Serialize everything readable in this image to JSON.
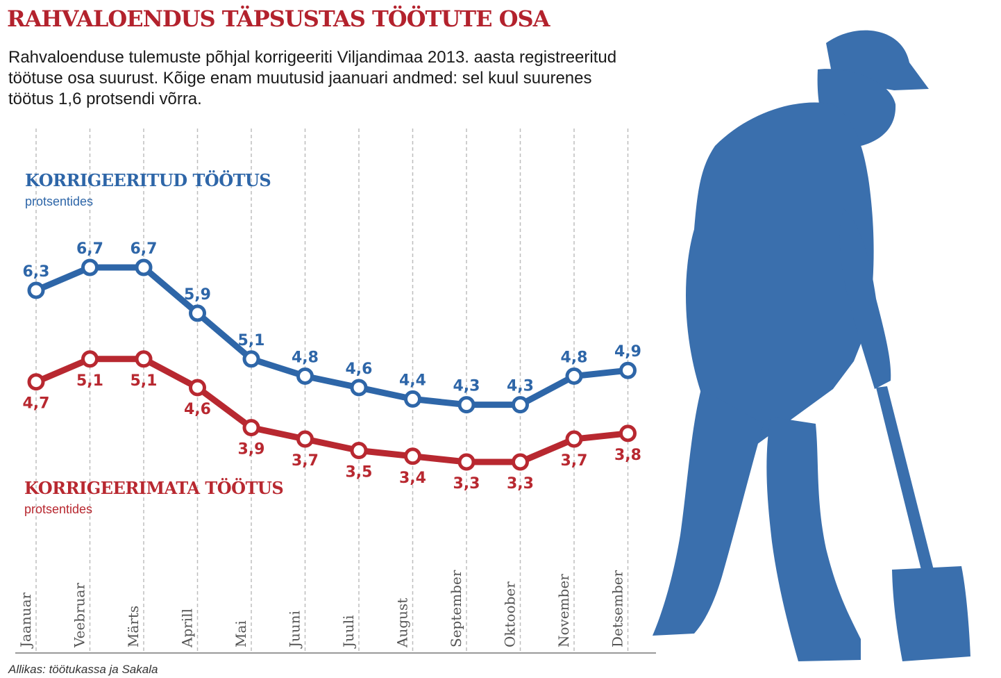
{
  "title": "RAHVALOENDUS TÄPSUSTAS TÖÖTUTE OSA",
  "intro_lines": [
    "Rahvaloenduse tulemuste põhjal korrigeeriti Viljandimaa 2013. aasta registreeritud",
    "töötuse osa suurust. Kõige enam muutusid jaanuari andmed: sel kuul suurenes",
    "töötus 1,6 protsendi võrra."
  ],
  "source": "Allikas: töötukassa ja Sakala",
  "colors": {
    "corrected": "#2e66a8",
    "uncorrected": "#b82830",
    "title": "#b3222d",
    "figure": "#3a6fad"
  },
  "figure_icon": "worker-with-shovel-silhouette",
  "chart_data": {
    "type": "line",
    "categories": [
      "Jaanuar",
      "Veebruar",
      "Märts",
      "Aprill",
      "Mai",
      "Juuni",
      "Juuli",
      "August",
      "September",
      "Oktoober",
      "November",
      "Detsember"
    ],
    "series": [
      {
        "name": "KORRIGEERITUD TÖÖTUS",
        "unit": "protsentides",
        "color": "#2e66a8",
        "values": [
          6.3,
          6.7,
          6.7,
          5.9,
          5.1,
          4.8,
          4.6,
          4.4,
          4.3,
          4.3,
          4.8,
          4.9
        ],
        "labels": [
          "6,3",
          "6,7",
          "6,7",
          "5,9",
          "5,1",
          "4,8",
          "4,6",
          "4,4",
          "4,3",
          "4,3",
          "4,8",
          "4,9"
        ]
      },
      {
        "name": "KORRIGEERIMATA TÖÖTUS",
        "unit": "protsentides",
        "color": "#b82830",
        "values": [
          4.7,
          5.1,
          5.1,
          4.6,
          3.9,
          3.7,
          3.5,
          3.4,
          3.3,
          3.3,
          3.7,
          3.8
        ],
        "labels": [
          "4,7",
          "5,1",
          "5,1",
          "4,6",
          "3,9",
          "3,7",
          "3,5",
          "3,4",
          "3,3",
          "3,3",
          "3,7",
          "3,8"
        ]
      }
    ],
    "grid": "vertical dashed",
    "legend": "inline-left"
  }
}
